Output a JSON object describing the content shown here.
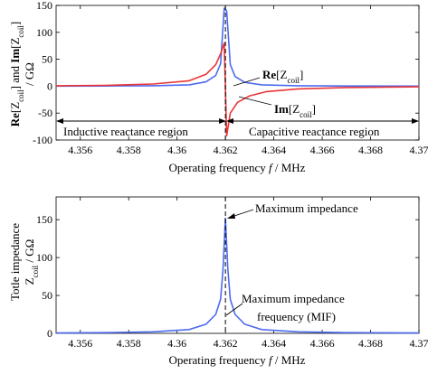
{
  "chart_data": [
    {
      "type": "line",
      "title": "",
      "xlabel": {
        "pre": "Operating frequency ",
        "var": "f",
        "post": " / MHz"
      },
      "ylabel": {
        "line1": [
          {
            "t": "Re",
            "bold": true
          },
          {
            "t": "[Z"
          },
          {
            "t": "coil",
            "sub": true
          },
          {
            "t": "] and "
          },
          {
            "t": "Im",
            "bold": true
          },
          {
            "t": "[Z"
          },
          {
            "t": "coil",
            "sub": true
          },
          {
            "t": "]"
          }
        ],
        "line2": "/ GΩ"
      },
      "xlim": [
        4.355,
        4.37
      ],
      "ylim": [
        -100,
        150
      ],
      "xticks": [
        4.356,
        4.358,
        4.36,
        4.362,
        4.364,
        4.366,
        4.368,
        4.37
      ],
      "xtick_labels": [
        "4.356",
        "4.358",
        "4.36",
        "4.362",
        "4.364",
        "4.366",
        "4.368",
        "4.37"
      ],
      "yticks": [
        -100,
        -50,
        0,
        50,
        100,
        150
      ],
      "ytick_labels": [
        "-100",
        "-50",
        "0",
        "50",
        "100",
        "150"
      ],
      "grid": false,
      "resonance_frequency": 4.362,
      "series": [
        {
          "key": "re",
          "color": "#4d6bf0",
          "x": [
            4.355,
            4.357,
            4.359,
            4.3605,
            4.3612,
            4.3616,
            4.3618,
            4.36195,
            4.36205,
            4.3622,
            4.3624,
            4.3628,
            4.3635,
            4.365,
            4.367,
            4.37
          ],
          "y": [
            0.2,
            0.3,
            0.8,
            2.5,
            8,
            20,
            42,
            145,
            140,
            40,
            18,
            7,
            2.5,
            0.8,
            0.4,
            0.2
          ]
        },
        {
          "key": "im",
          "color": "#ec3535",
          "x": [
            4.355,
            4.357,
            4.359,
            4.3605,
            4.3612,
            4.3616,
            4.3618,
            4.36195,
            4.36205,
            4.3622,
            4.3625,
            4.363,
            4.3637,
            4.365,
            4.367,
            4.37
          ],
          "y": [
            0.8,
            1.5,
            4,
            10,
            22,
            40,
            60,
            80,
            -92,
            -50,
            -30,
            -18,
            -10,
            -5,
            -2.5,
            -1.2
          ]
        }
      ],
      "annotations": {
        "re": [
          {
            "t": "Re",
            "bold": true
          },
          {
            "t": "[Z"
          },
          {
            "t": "coil",
            "sub": true
          },
          {
            "t": "]"
          }
        ],
        "im": [
          {
            "t": "Im",
            "bold": true
          },
          {
            "t": "[Z"
          },
          {
            "t": "coil",
            "sub": true
          },
          {
            "t": "]"
          }
        ],
        "inductive": "Inductive reactance region",
        "capacitive": "Capacitive reactance region"
      }
    },
    {
      "type": "line",
      "title": "",
      "xlabel": {
        "pre": "Operating frequency ",
        "var": "f",
        "post": " / MHz"
      },
      "ylabel": {
        "line1": "Totle impedance",
        "line2": [
          {
            "t": "Z"
          },
          {
            "t": "coil",
            "sub": true
          },
          {
            "t": " / GΩ"
          }
        ]
      },
      "xlim": [
        4.355,
        4.37
      ],
      "ylim": [
        0,
        180
      ],
      "xticks": [
        4.356,
        4.358,
        4.36,
        4.362,
        4.364,
        4.366,
        4.368,
        4.37
      ],
      "xtick_labels": [
        "4.356",
        "4.358",
        "4.36",
        "4.362",
        "4.364",
        "4.366",
        "4.368",
        "4.37"
      ],
      "yticks": [
        0,
        50,
        100,
        150
      ],
      "ytick_labels": [
        "0",
        "50",
        "100",
        "150"
      ],
      "grid": false,
      "resonance_frequency": 4.362,
      "series": [
        {
          "key": "z",
          "color": "#4d6bf0",
          "x": [
            4.355,
            4.357,
            4.359,
            4.3605,
            4.3612,
            4.3616,
            4.3618,
            4.3619,
            4.362,
            4.3621,
            4.3622,
            4.3624,
            4.3628,
            4.3635,
            4.365,
            4.367,
            4.37
          ],
          "y": [
            0.5,
            1,
            2,
            5,
            12,
            25,
            45,
            85,
            152,
            85,
            45,
            25,
            12,
            5,
            2,
            1,
            0.5
          ]
        }
      ],
      "annotations": {
        "max_label": "Maximum impedance",
        "mif_line1": "Maximum impedance",
        "mif_line2": "frequency (MIF)"
      }
    }
  ]
}
